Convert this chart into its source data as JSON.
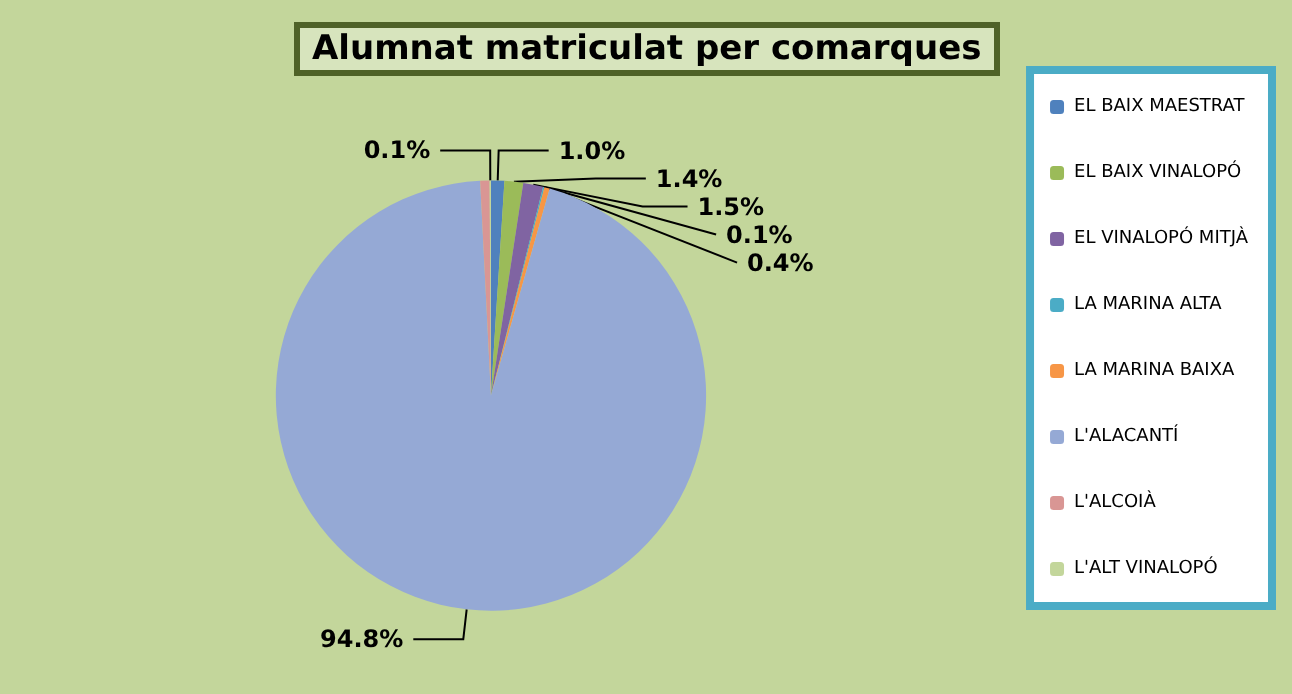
{
  "chart_data": {
    "type": "pie",
    "title": "Alumnat matriculat per comarques",
    "categories": [
      "EL BAIX MAESTRAT",
      "EL BAIX VINALOPÓ",
      "EL VINALOPÓ MITJÀ",
      "LA MARINA ALTA",
      "LA MARINA BAIXA",
      "L'ALACANTÍ",
      "L'ALCOIÀ",
      "L'ALT VINALOPÓ"
    ],
    "values": [
      1.0,
      1.4,
      1.5,
      0.1,
      0.4,
      94.8,
      0.7,
      0.1
    ],
    "value_labels": [
      "1.0%",
      "1.4%",
      "1.5%",
      "0.1%",
      "0.4%",
      "94.8%",
      null,
      "0.1%"
    ],
    "colors": [
      "#4f81bd",
      "#9bbb59",
      "#8064a2",
      "#4bacc6",
      "#f79646",
      "#95a9d5",
      "#d99694",
      "#c3d69b"
    ],
    "legend": "right"
  }
}
